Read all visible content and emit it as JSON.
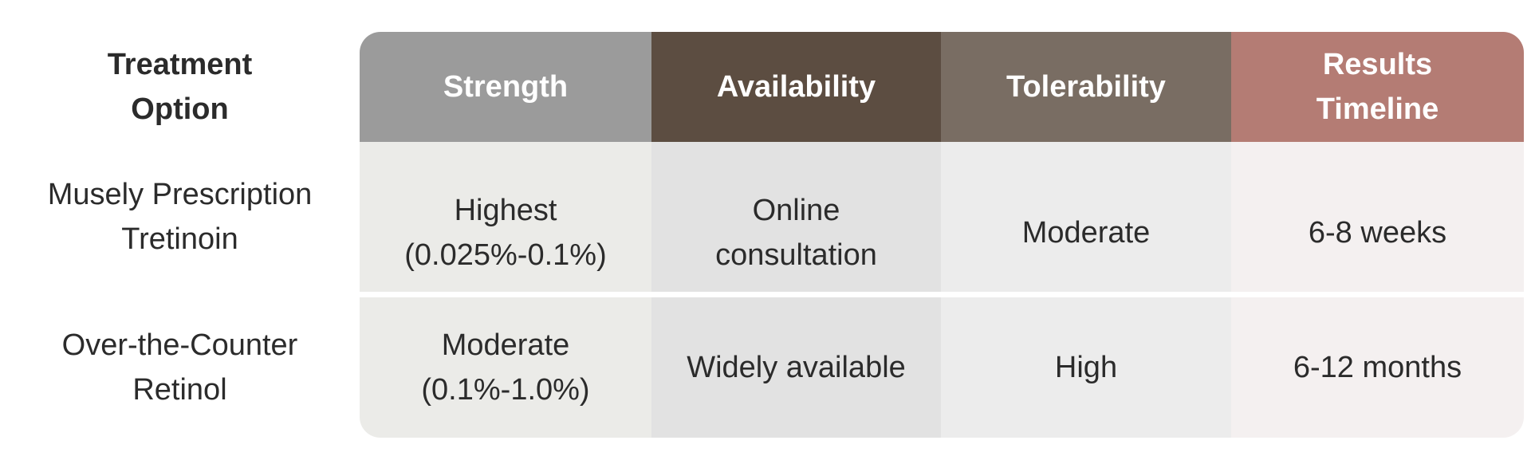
{
  "header": {
    "row_label": "Treatment\nOption",
    "columns": [
      {
        "label": "Strength",
        "color": "#9b9b9b"
      },
      {
        "label": "Availability",
        "color": "#5c4d41"
      },
      {
        "label": "Tolerability",
        "color": "#796d63"
      },
      {
        "label": "Results\nTimeline",
        "color": "#b47c74"
      }
    ]
  },
  "rows": [
    {
      "label": "Musely Prescription\nTretinoin",
      "cells": [
        "Highest\n(0.025%-0.1%)",
        "Online\nconsultation",
        "Moderate",
        "6-8 weeks"
      ]
    },
    {
      "label": "Over-the-Counter\nRetinol",
      "cells": [
        "Moderate\n(0.1%-1.0%)",
        "Widely available",
        "High",
        "6-12 months"
      ]
    }
  ],
  "cell_colors": [
    "#ebebe8",
    "#e2e2e2",
    "#ececec",
    "#f4f0f0"
  ]
}
